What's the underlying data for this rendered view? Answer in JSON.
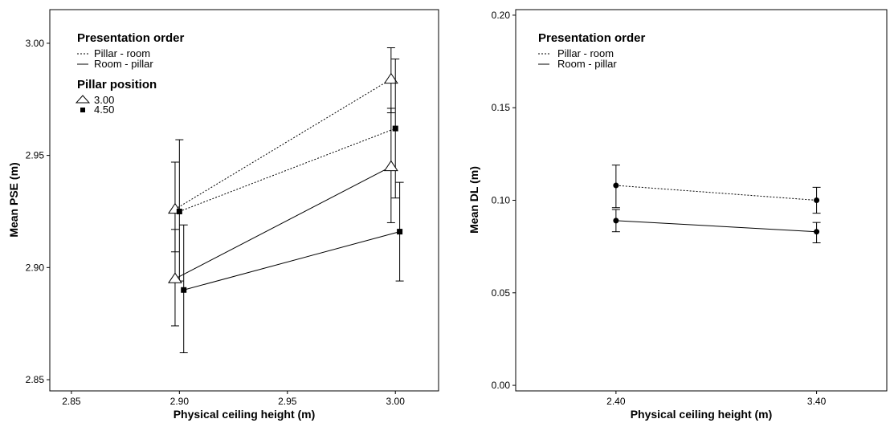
{
  "chart_data": [
    {
      "type": "line",
      "xlabel": "Physical ceiling height (m)",
      "ylabel": "Mean PSE (m)",
      "xlim": [
        2.84,
        3.02
      ],
      "ylim": [
        2.845,
        3.015
      ],
      "xticks": [
        "2.85",
        "2.90",
        "2.95",
        "3.00"
      ],
      "yticks": [
        "2.85",
        "2.90",
        "2.95",
        "3.00"
      ],
      "legend": {
        "placement": "top-left",
        "title1": "Presentation order",
        "order_items": [
          "Pillar - room",
          "Room - pillar"
        ],
        "title2": "Pillar position",
        "position_items": [
          "3.00",
          "4.50"
        ]
      },
      "series": [
        {
          "order": "Pillar - room",
          "position": "3.00",
          "x": [
            2.898,
            2.998
          ],
          "y": [
            2.926,
            2.984
          ],
          "err_low": [
            2.907,
            2.969
          ],
          "err_high": [
            2.947,
            2.998
          ],
          "line": "dotted",
          "marker": "triangle"
        },
        {
          "order": "Pillar - room",
          "position": "4.50",
          "x": [
            2.9,
            3.0
          ],
          "y": [
            2.925,
            2.962
          ],
          "err_low": [
            2.894,
            2.931
          ],
          "err_high": [
            2.957,
            2.993
          ],
          "line": "dotted",
          "marker": "square"
        },
        {
          "order": "Room - pillar",
          "position": "3.00",
          "x": [
            2.898,
            2.998
          ],
          "y": [
            2.895,
            2.945
          ],
          "err_low": [
            2.874,
            2.92
          ],
          "err_high": [
            2.917,
            2.971
          ],
          "line": "solid",
          "marker": "triangle"
        },
        {
          "order": "Room - pillar",
          "position": "4.50",
          "x": [
            2.902,
            3.002
          ],
          "y": [
            2.89,
            2.916
          ],
          "err_low": [
            2.862,
            2.894
          ],
          "err_high": [
            2.919,
            2.938
          ],
          "line": "solid",
          "marker": "square"
        }
      ]
    },
    {
      "type": "line",
      "xlabel": "Physical ceiling height (m)",
      "ylabel": "Mean DL (m)",
      "xlim": [
        1.9,
        3.75
      ],
      "ylim": [
        -0.003,
        0.203
      ],
      "xticks": [
        "2.40",
        "3.40"
      ],
      "yticks": [
        "0.00",
        "0.05",
        "0.10",
        "0.15",
        "0.20"
      ],
      "legend": {
        "placement": "top-left",
        "title1": "Presentation order",
        "order_items": [
          "Pillar - room",
          "Room - pillar"
        ]
      },
      "series": [
        {
          "order": "Pillar - room",
          "x": [
            2.4,
            3.4
          ],
          "y": [
            0.108,
            0.1
          ],
          "err_low": [
            0.096,
            0.093
          ],
          "err_high": [
            0.119,
            0.107
          ],
          "line": "dotted",
          "marker": "circle"
        },
        {
          "order": "Room - pillar",
          "x": [
            2.4,
            3.4
          ],
          "y": [
            0.089,
            0.083
          ],
          "err_low": [
            0.083,
            0.077
          ],
          "err_high": [
            0.095,
            0.088
          ],
          "line": "solid",
          "marker": "circle"
        }
      ]
    }
  ]
}
